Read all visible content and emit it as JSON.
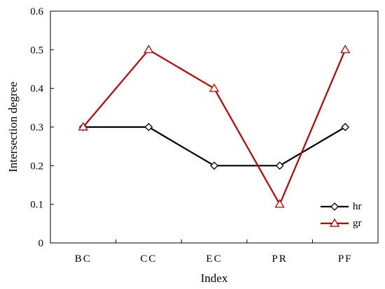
{
  "chart_data": {
    "type": "line",
    "categories": [
      "BC",
      "CC",
      "EC",
      "PR",
      "PF"
    ],
    "series": [
      {
        "name": "hr",
        "values": [
          0.3,
          0.3,
          0.2,
          0.2,
          0.3
        ],
        "color": "#000000",
        "marker": "diamond"
      },
      {
        "name": "gr",
        "values": [
          0.3,
          0.5,
          0.4,
          0.1,
          0.5
        ],
        "color": "#c00000",
        "marker": "triangle"
      }
    ],
    "xlabel": "Index",
    "ylabel": "Intersection degree",
    "ylim": [
      0,
      0.6
    ],
    "yticks": [
      "0",
      "0.1",
      "0.2",
      "0.3",
      "0.4",
      "0.5",
      "0.6"
    ],
    "grid": false,
    "legend": "bottom-right"
  }
}
